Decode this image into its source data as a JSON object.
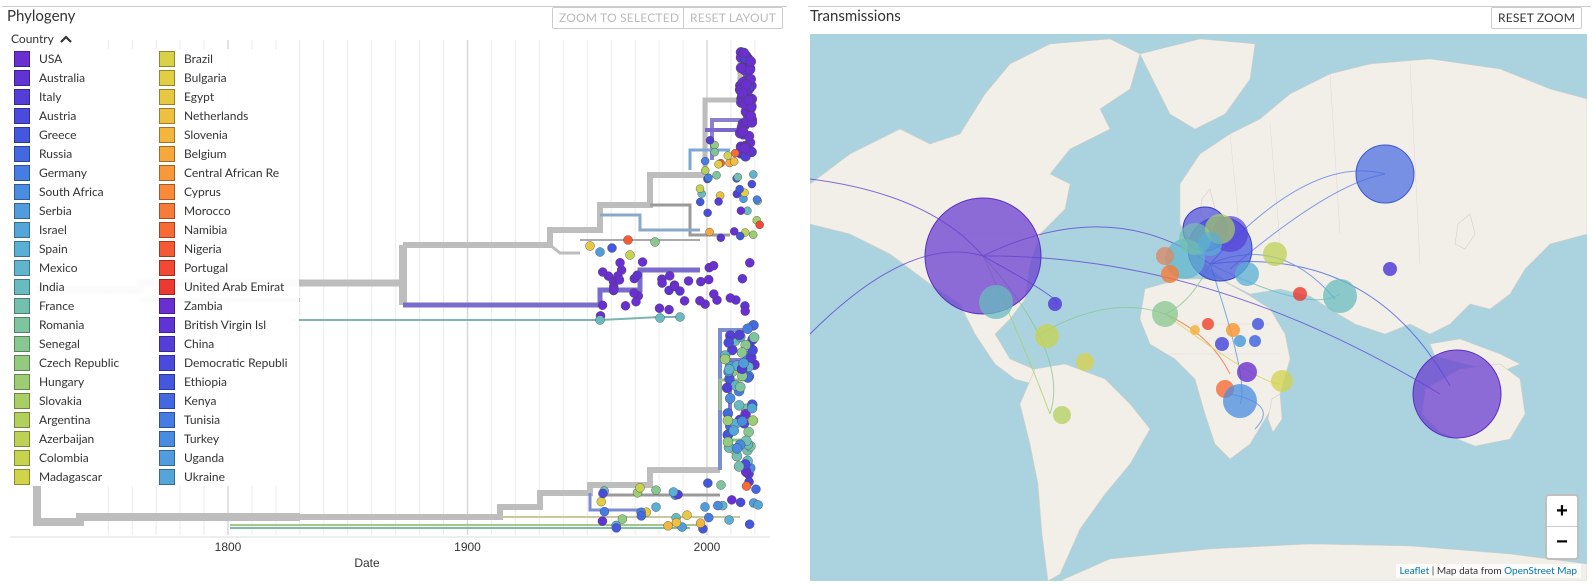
{
  "phylogeny": {
    "title": "Phylogeny",
    "zoom_to_selected": "ZOOM TO SELECTED",
    "reset_layout": "RESET LAYOUT",
    "legend_title": "Country",
    "legend_toggle_icon": "chevron-up-icon",
    "x_axis_label": "Date",
    "x_ticks": [
      "1800",
      "1900",
      "2000"
    ],
    "legend_col1": [
      {
        "label": "USA",
        "color": "#6a2fd0"
      },
      {
        "label": "Australia",
        "color": "#5f33d4"
      },
      {
        "label": "Italy",
        "color": "#533ed8"
      },
      {
        "label": "Austria",
        "color": "#4a4bdc"
      },
      {
        "label": "Greece",
        "color": "#4458de"
      },
      {
        "label": "Russia",
        "color": "#4468e0"
      },
      {
        "label": "Germany",
        "color": "#467de2"
      },
      {
        "label": "South Africa",
        "color": "#4a8ce0"
      },
      {
        "label": "Serbia",
        "color": "#509cdc"
      },
      {
        "label": "Israel",
        "color": "#55a6d8"
      },
      {
        "label": "Spain",
        "color": "#5aafd4"
      },
      {
        "label": "Mexico",
        "color": "#60b5cc"
      },
      {
        "label": "India",
        "color": "#68bbbe"
      },
      {
        "label": "France",
        "color": "#74c0ae"
      },
      {
        "label": "Romania",
        "color": "#7ec49e"
      },
      {
        "label": "Senegal",
        "color": "#88c78f"
      },
      {
        "label": "Czech Republic",
        "color": "#92ca80"
      },
      {
        "label": "Hungary",
        "color": "#9dcd72"
      },
      {
        "label": "Slovakia",
        "color": "#a8cf66"
      },
      {
        "label": "Argentina",
        "color": "#b2d05c"
      },
      {
        "label": "Azerbaijan",
        "color": "#bdd255"
      },
      {
        "label": "Colombia",
        "color": "#c7d34f"
      },
      {
        "label": "Madagascar",
        "color": "#d1d34b"
      }
    ],
    "legend_col2": [
      {
        "label": "Brazil",
        "color": "#d9d148"
      },
      {
        "label": "Bulgaria",
        "color": "#e1ce45"
      },
      {
        "label": "Egypt",
        "color": "#e8c842"
      },
      {
        "label": "Netherlands",
        "color": "#eec040"
      },
      {
        "label": "Slovenia",
        "color": "#f2b53e"
      },
      {
        "label": "Belgium",
        "color": "#f5a83c"
      },
      {
        "label": "Central African Re",
        "color": "#f7993b"
      },
      {
        "label": "Cyprus",
        "color": "#f88a3a"
      },
      {
        "label": "Morocco",
        "color": "#f77b39"
      },
      {
        "label": "Namibia",
        "color": "#f66b38"
      },
      {
        "label": "Nigeria",
        "color": "#f45a36"
      },
      {
        "label": "Portugal",
        "color": "#f14934"
      },
      {
        "label": "United Arab Emirat",
        "color": "#ec3a31"
      },
      {
        "label": "Zambia",
        "color": "#6a2fd0"
      },
      {
        "label": "British Virgin Isl",
        "color": "#5f33d4"
      },
      {
        "label": "China",
        "color": "#533ed8"
      },
      {
        "label": "Democratic Republi",
        "color": "#4a4bdc"
      },
      {
        "label": "Ethiopia",
        "color": "#4458de"
      },
      {
        "label": "Kenya",
        "color": "#4468e0"
      },
      {
        "label": "Tunisia",
        "color": "#467de2"
      },
      {
        "label": "Turkey",
        "color": "#4a8ce0"
      },
      {
        "label": "Uganda",
        "color": "#509cdc"
      },
      {
        "label": "Ukraine",
        "color": "#55a6d8"
      }
    ]
  },
  "transmissions": {
    "title": "Transmissions",
    "reset_zoom": "RESET ZOOM",
    "zoom_in": "+",
    "zoom_out": "−",
    "attribution_leaflet": "Leaflet",
    "attribution_sep": " | Map data from ",
    "attribution_osm": "OpenStreet Map"
  }
}
